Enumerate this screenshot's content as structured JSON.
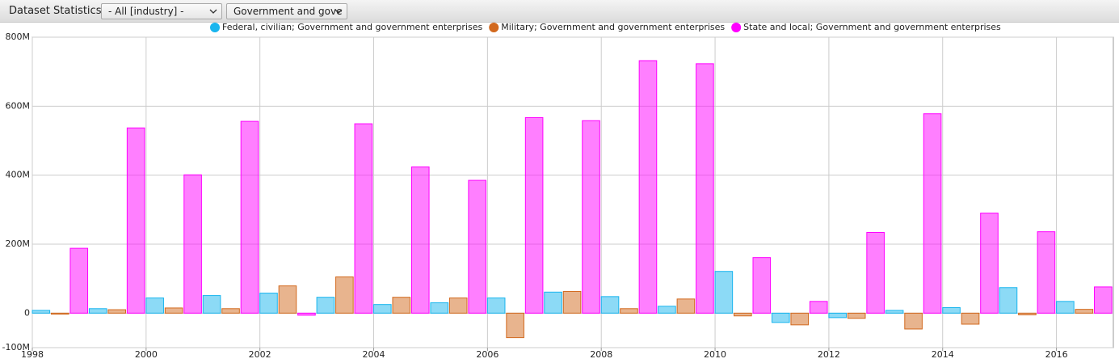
{
  "toolbar": {
    "title": "Dataset Statistics",
    "filters": [
      "- All [industry] -",
      "Government and gove"
    ]
  },
  "chart_data": {
    "type": "bar",
    "x": [
      1998,
      1999,
      2000,
      2001,
      2002,
      2003,
      2004,
      2005,
      2006,
      2007,
      2008,
      2009,
      2010,
      2011,
      2012,
      2013,
      2014,
      2015,
      2016
    ],
    "series": [
      {
        "name": "Federal, civilian; Government and government enterprises",
        "color": "#19b5ee",
        "values": [
          8000000,
          13000000,
          44000000,
          51000000,
          58000000,
          46000000,
          25000000,
          30000000,
          44000000,
          61000000,
          48000000,
          20000000,
          121000000,
          -27000000,
          -13000000,
          8000000,
          16000000,
          74000000,
          34000000
        ]
      },
      {
        "name": "Military; Government and government enterprises",
        "color": "#d2691e",
        "values": [
          -3000000,
          10000000,
          15000000,
          13000000,
          79000000,
          105000000,
          46000000,
          44000000,
          -71000000,
          63000000,
          13000000,
          41000000,
          -8000000,
          -34000000,
          -15000000,
          -46000000,
          -32000000,
          -5000000,
          11000000
        ]
      },
      {
        "name": "State and local; Government and government enterprises",
        "color": "#ff00ff",
        "values": [
          188000000,
          537000000,
          401000000,
          556000000,
          -6000000,
          549000000,
          424000000,
          385000000,
          567000000,
          558000000,
          732000000,
          723000000,
          161000000,
          34000000,
          234000000,
          578000000,
          290000000,
          236000000,
          76000000
        ]
      }
    ],
    "xlim": [
      1998,
      2017
    ],
    "xticks": [
      1998,
      2000,
      2002,
      2004,
      2006,
      2008,
      2010,
      2012,
      2014,
      2016
    ],
    "ylim": [
      -100000000,
      800000000
    ],
    "yticks": [
      {
        "value": -100000000,
        "label": "-100M"
      },
      0,
      {
        "value": 200000000,
        "label": "200M"
      },
      {
        "value": 400000000,
        "label": "400M"
      },
      {
        "value": 600000000,
        "label": "600M"
      },
      {
        "value": 800000000,
        "label": "800M"
      }
    ],
    "grid": true
  }
}
